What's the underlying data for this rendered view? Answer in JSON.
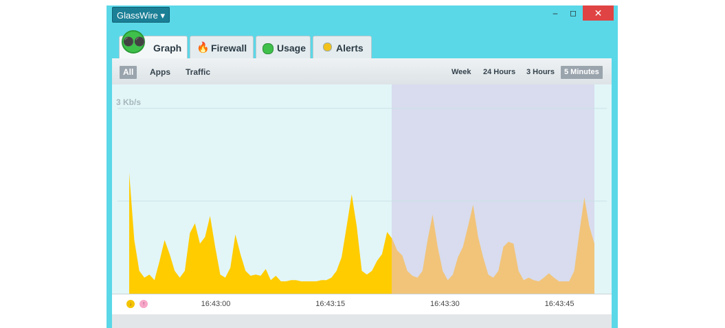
{
  "window": {
    "app_name": "GlassWire"
  },
  "tabs": [
    "Graph",
    "Firewall",
    "Usage",
    "Alerts"
  ],
  "filters": [
    "All",
    "Apps",
    "Traffic"
  ],
  "ranges": [
    "Week",
    "24 Hours",
    "3 Hours",
    "5 Minutes"
  ],
  "chart_data": {
    "type": "area",
    "values": [
      1.96,
      0.87,
      0.37,
      0.26,
      0.31,
      0.22,
      0.53,
      0.87,
      0.64,
      0.37,
      0.26,
      0.37,
      0.98,
      1.14,
      0.81,
      0.92,
      1.26,
      0.76,
      0.31,
      0.26,
      0.42,
      0.96,
      0.64,
      0.37,
      0.29,
      0.31,
      0.29,
      0.4,
      0.22,
      0.29,
      0.2,
      0.2,
      0.22,
      0.22,
      0.2,
      0.2,
      0.2,
      0.2,
      0.22,
      0.22,
      0.26,
      0.37,
      0.59,
      1.09,
      1.61,
      1.09,
      0.37,
      0.31,
      0.37,
      0.53,
      0.64,
      1.0,
      0.89,
      0.7,
      0.62,
      0.37,
      0.29,
      0.26,
      0.37,
      0.87,
      1.28,
      0.76,
      0.37,
      0.22,
      0.31,
      0.59,
      0.76,
      1.09,
      1.44,
      0.92,
      0.59,
      0.31,
      0.26,
      0.37,
      0.76,
      0.84,
      0.81,
      0.37,
      0.22,
      0.26,
      0.22,
      0.2,
      0.26,
      0.33,
      0.26,
      0.2,
      0.2,
      0.2,
      0.37,
      0.98,
      1.56,
      1.09,
      0.81
    ],
    "ylim": [
      0,
      3
    ],
    "yticks": [
      {
        "value": 1.5,
        "label": null
      },
      {
        "value": 3,
        "label": "3 Kb/s"
      }
    ],
    "xticks": [
      "16:43:00",
      "16:43:15",
      "16:43:30",
      "16:43:45"
    ],
    "colors": [
      "#ffcc00",
      "#f1c47a"
    ]
  }
}
